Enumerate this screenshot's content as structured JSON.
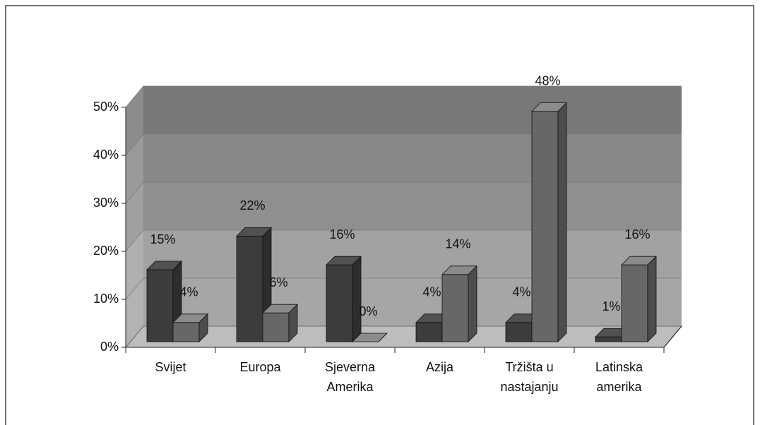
{
  "chart_data": {
    "type": "bar3d",
    "categories": [
      "Svijet",
      "Europa",
      "Sjeverna Amerika",
      "Azija",
      "Tržišta u nastajanju",
      "Latinska amerika"
    ],
    "series": [
      {
        "color": "#3c3c3c",
        "values": [
          15,
          22,
          16,
          4,
          4,
          1
        ],
        "value_labels": [
          "15%",
          "22%",
          "16%",
          "4%",
          "4%",
          "1%"
        ]
      },
      {
        "color": "#676767",
        "values": [
          4,
          6,
          0,
          14,
          48,
          16
        ],
        "value_labels": [
          "4%",
          "6%",
          "0%",
          "14%",
          "48%",
          "16%"
        ]
      }
    ],
    "ylim": [
      0,
      50
    ],
    "yticks": [
      {
        "value": 0,
        "label": "0%"
      },
      {
        "value": 10,
        "label": "10%"
      },
      {
        "value": 20,
        "label": "20%"
      },
      {
        "value": 30,
        "label": "30%"
      },
      {
        "value": 40,
        "label": "40%"
      },
      {
        "value": 50,
        "label": "50%"
      }
    ],
    "grid": true
  }
}
